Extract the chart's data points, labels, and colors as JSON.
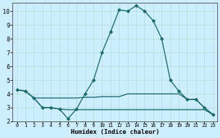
{
  "xlabel": "Humidex (Indice chaleur)",
  "background_color": "#cceeff",
  "grid_color": "#b8ddd8",
  "line_color": "#1a6b6b",
  "xlim": [
    -0.5,
    23.5
  ],
  "ylim": [
    2.0,
    10.6
  ],
  "xticks": [
    0,
    1,
    2,
    3,
    4,
    5,
    6,
    7,
    8,
    9,
    10,
    11,
    12,
    13,
    14,
    15,
    16,
    17,
    18,
    19,
    20,
    21,
    22,
    23
  ],
  "yticks": [
    2,
    3,
    4,
    5,
    6,
    7,
    8,
    9,
    10
  ],
  "line1_x": [
    0,
    1,
    2,
    3,
    4,
    5,
    6,
    7,
    8,
    9,
    10,
    11,
    12,
    13,
    14,
    15,
    16,
    17,
    18,
    19,
    20,
    21,
    22,
    23
  ],
  "line1_y": [
    4.3,
    4.2,
    3.7,
    3.0,
    3.0,
    2.9,
    2.2,
    2.9,
    4.0,
    5.0,
    7.0,
    8.5,
    10.1,
    10.0,
    10.4,
    10.0,
    9.3,
    8.0,
    5.0,
    4.2,
    3.6,
    3.6,
    3.0,
    2.5
  ],
  "line2_x": [
    0,
    1,
    2,
    3,
    4,
    5,
    6,
    7,
    8,
    9,
    10,
    11,
    12,
    13,
    14,
    15,
    16,
    17,
    18,
    19,
    20,
    21,
    22,
    23
  ],
  "line2_y": [
    4.3,
    4.2,
    3.7,
    3.7,
    3.7,
    3.7,
    3.7,
    3.7,
    3.75,
    3.75,
    3.8,
    3.8,
    3.8,
    4.0,
    4.0,
    4.0,
    4.0,
    4.0,
    4.0,
    4.0,
    3.6,
    3.6,
    3.0,
    2.5
  ],
  "line3_x": [
    0,
    1,
    2,
    3,
    4,
    5,
    6,
    7,
    8,
    9,
    10,
    11,
    12,
    13,
    14,
    15,
    16,
    17,
    18,
    19,
    20,
    21,
    22,
    23
  ],
  "line3_y": [
    4.3,
    4.2,
    3.7,
    3.0,
    3.0,
    2.9,
    2.85,
    2.85,
    2.85,
    2.85,
    2.85,
    2.85,
    2.85,
    2.85,
    2.85,
    2.85,
    2.85,
    2.85,
    2.85,
    2.85,
    2.85,
    2.85,
    2.85,
    2.5
  ],
  "marker": "D",
  "markersize": 2.5,
  "linewidth": 1.0
}
